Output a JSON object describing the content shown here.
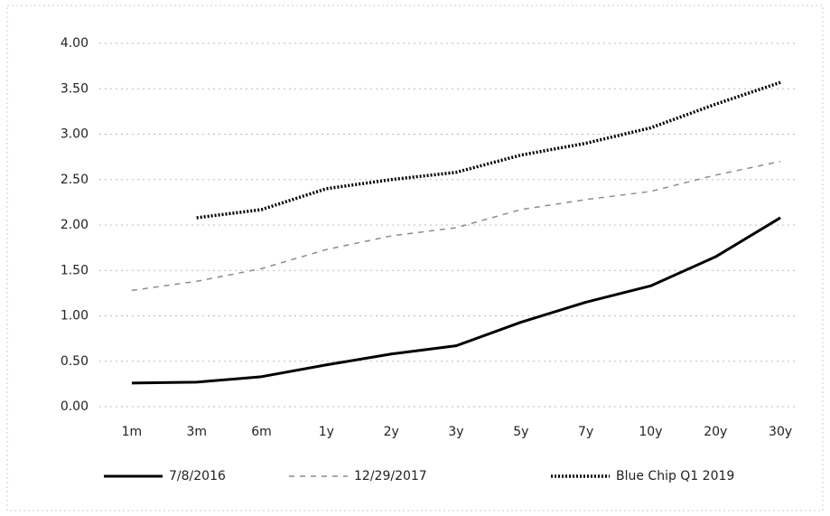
{
  "chart_data": {
    "type": "line",
    "categories": [
      "1m",
      "3m",
      "6m",
      "1y",
      "2y",
      "3y",
      "5y",
      "7y",
      "10y",
      "20y",
      "30y"
    ],
    "series": [
      {
        "name": "7/8/2016",
        "color": "#000000",
        "dash": "solid",
        "values": [
          0.26,
          0.27,
          0.33,
          0.46,
          0.58,
          0.67,
          0.93,
          1.15,
          1.33,
          1.65,
          2.08
        ]
      },
      {
        "name": "12/29/2017",
        "color": "#8c8c8c",
        "dash": "dashed",
        "values": [
          1.28,
          1.38,
          1.52,
          1.73,
          1.88,
          1.97,
          2.17,
          2.28,
          2.37,
          2.55,
          2.7
        ]
      },
      {
        "name": "Blue Chip Q1 2019",
        "color": "#000000",
        "dash": "dotted",
        "values": [
          null,
          2.08,
          2.17,
          2.4,
          2.5,
          2.58,
          2.77,
          2.9,
          3.07,
          3.33,
          3.57
        ]
      }
    ],
    "ylim": [
      0,
      4
    ],
    "yticks": [
      {
        "value": 0,
        "label": "0.00"
      },
      {
        "value": 0.5,
        "label": "0.50"
      },
      {
        "value": 1,
        "label": "1.00"
      },
      {
        "value": 1.5,
        "label": "1.50"
      },
      {
        "value": 2,
        "label": "2.00"
      },
      {
        "value": 2.5,
        "label": "2.50"
      },
      {
        "value": 3,
        "label": "3.00"
      },
      {
        "value": 3.5,
        "label": "3.50"
      },
      {
        "value": 4,
        "label": "4.00"
      }
    ],
    "grid": true,
    "legend": "bottom"
  }
}
